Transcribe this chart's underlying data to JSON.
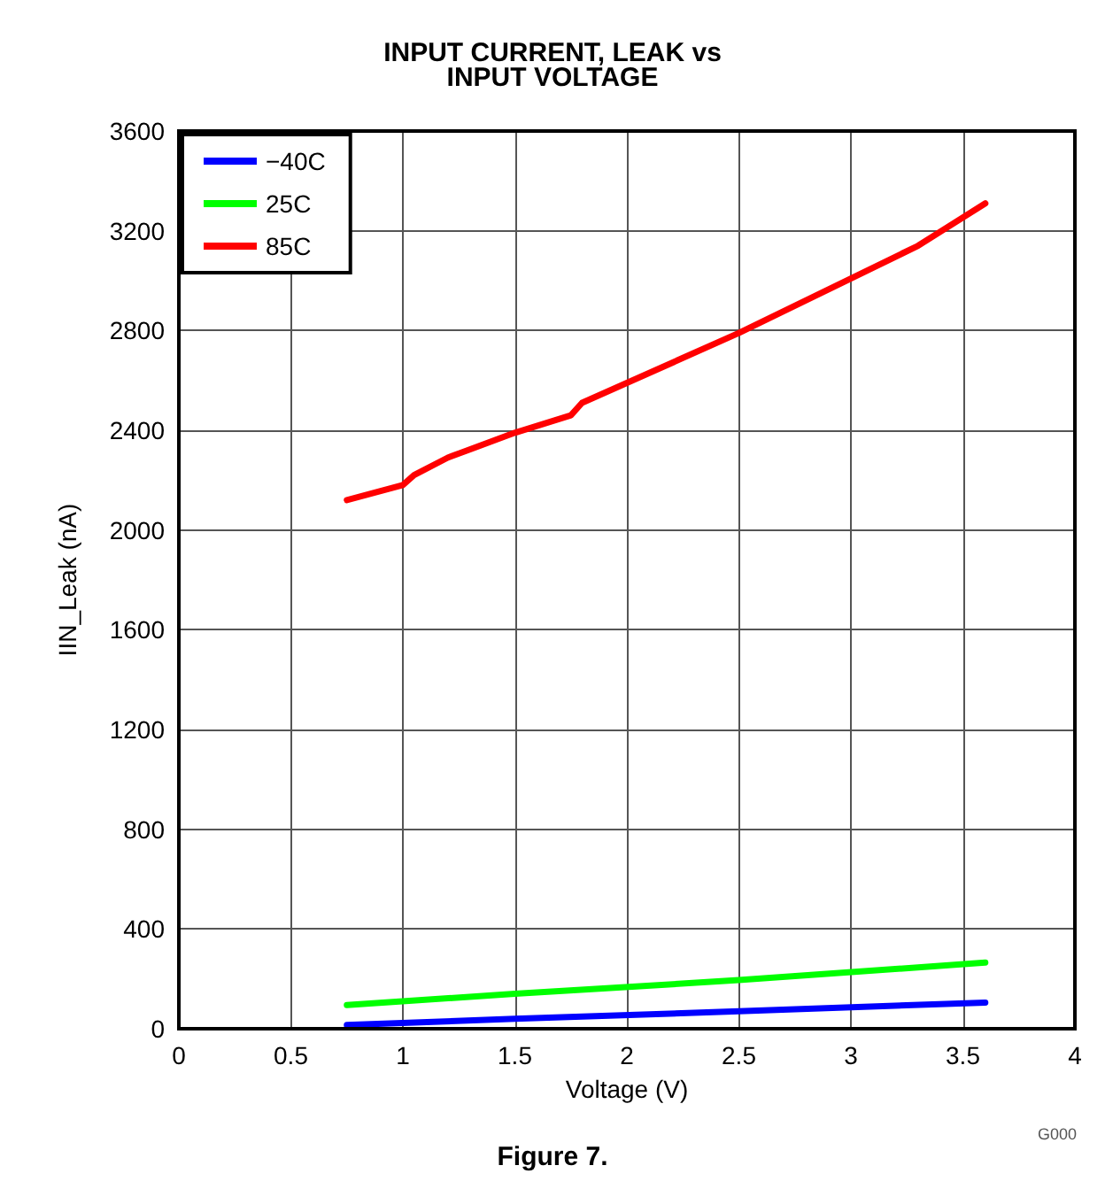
{
  "chart_data": {
    "type": "line",
    "title": "INPUT CURRENT, LEAK vs\nINPUT VOLTAGE",
    "xlabel": "Voltage (V)",
    "ylabel": "IIN_Leak (nA)",
    "annotations": [
      "G000",
      "Figure 7."
    ],
    "series": [
      {
        "name": "−40C",
        "color": "#0000ff",
        "x": [
          0.75,
          1.5,
          2.5,
          3.6
        ],
        "values": [
          15,
          40,
          70,
          105
        ]
      },
      {
        "name": "25C",
        "color": "#00ff00",
        "x": [
          0.75,
          1.5,
          2.5,
          3.6
        ],
        "values": [
          95,
          140,
          195,
          265
        ]
      },
      {
        "name": "85C",
        "color": "#ff0000",
        "x": [
          0.75,
          1.0,
          1.05,
          1.2,
          1.5,
          1.75,
          1.8,
          2.5,
          3.3,
          3.6
        ],
        "values": [
          2120,
          2180,
          2220,
          2290,
          2390,
          2460,
          2510,
          2790,
          3140,
          3310
        ]
      }
    ],
    "xlim": [
      0,
      4
    ],
    "xticks": [
      0,
      0.5,
      1,
      1.5,
      2,
      2.5,
      3,
      3.5,
      4
    ],
    "ylim": [
      0,
      3600
    ],
    "yticks": [
      0,
      400,
      800,
      1200,
      1600,
      2000,
      2400,
      2800,
      3200,
      3600
    ],
    "grid": true,
    "legend": "top left",
    "marker": "none",
    "line_style": "solid"
  }
}
